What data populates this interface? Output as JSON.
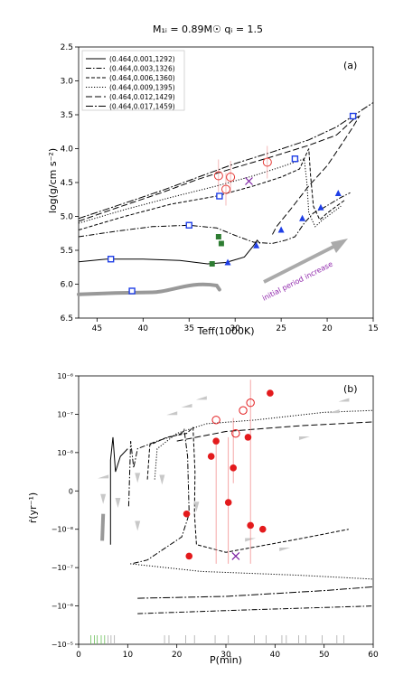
{
  "figure_title": "M₁ᵢ = 0.89M☉ qᵢ = 1.5",
  "chart_data": [
    {
      "type": "line",
      "panel_label": "(a)",
      "xlabel": "Teff(1000K)",
      "ylabel": "log(g/cm s⁻²)",
      "xlim": [
        47,
        15
      ],
      "ylim": [
        6.5,
        2.5
      ],
      "x_reversed": true,
      "y_reversed": true,
      "xticks": [
        "45",
        "40",
        "35",
        "30",
        "25",
        "20",
        "15"
      ],
      "yticks": [
        "2.5",
        "3.0",
        "3.5",
        "4.0",
        "4.5",
        "5.0",
        "5.5",
        "6.0",
        "6.5"
      ],
      "annotation": "initial period increase",
      "legend_position": "upper-left",
      "series": [
        {
          "name": "(0.464,0.001,1292)",
          "style": "solid",
          "points": [
            [
              47,
              5.67
            ],
            [
              44,
              5.63
            ],
            [
              40,
              5.63
            ],
            [
              36,
              5.65
            ],
            [
              33,
              5.7
            ],
            [
              31,
              5.68
            ],
            [
              29,
              5.6
            ],
            [
              28,
              5.43
            ],
            [
              27.6,
              5.35
            ],
            [
              27.3,
              5.4
            ]
          ]
        },
        {
          "name": "(0.464,0.003,1326)",
          "style": "dashdot",
          "points": [
            [
              47,
              5.3
            ],
            [
              43,
              5.22
            ],
            [
              39,
              5.15
            ],
            [
              35,
              5.13
            ],
            [
              32,
              5.17
            ],
            [
              30,
              5.28
            ],
            [
              28,
              5.38
            ],
            [
              26,
              5.4
            ],
            [
              24.5,
              5.35
            ],
            [
              23.5,
              5.3
            ],
            [
              22.5,
              5.1
            ],
            [
              21.5,
              4.95
            ],
            [
              20.5,
              4.88
            ],
            [
              19.5,
              4.8
            ],
            [
              18.5,
              4.72
            ],
            [
              17.5,
              4.65
            ]
          ]
        },
        {
          "name": "(0.464,0.006,1360)",
          "style": "dashed",
          "points": [
            [
              47,
              5.2
            ],
            [
              42,
              5.0
            ],
            [
              37,
              4.82
            ],
            [
              32,
              4.7
            ],
            [
              28,
              4.55
            ],
            [
              25,
              4.42
            ],
            [
              23,
              4.3
            ],
            [
              22,
              4.0
            ],
            [
              21.8,
              4.4
            ],
            [
              21.5,
              4.85
            ],
            [
              20.8,
              5.05
            ],
            [
              20,
              4.95
            ],
            [
              19,
              4.85
            ],
            [
              18,
              4.75
            ]
          ]
        },
        {
          "name": "(0.464,0.009,1395)",
          "style": "dotted",
          "points": [
            [
              47,
              5.1
            ],
            [
              42,
              4.9
            ],
            [
              37,
              4.72
            ],
            [
              32,
              4.55
            ],
            [
              28,
              4.4
            ],
            [
              25,
              4.27
            ],
            [
              22.5,
              4.15
            ],
            [
              22.2,
              4.5
            ],
            [
              22,
              4.95
            ],
            [
              21.3,
              5.15
            ],
            [
              20.5,
              5.05
            ],
            [
              19.5,
              4.95
            ],
            [
              18.5,
              4.85
            ]
          ]
        },
        {
          "name": "(0.464,0.012,1429)",
          "style": "loosedash",
          "points": [
            [
              47,
              5.07
            ],
            [
              43,
              4.88
            ],
            [
              38,
              4.65
            ],
            [
              34,
              4.45
            ],
            [
              30,
              4.28
            ],
            [
              26,
              4.12
            ],
            [
              22,
              3.95
            ],
            [
              19,
              3.8
            ],
            [
              17,
              3.55
            ],
            [
              16.5,
              3.52
            ],
            [
              17.3,
              3.7
            ],
            [
              18.5,
              3.95
            ],
            [
              20,
              4.25
            ],
            [
              22,
              4.55
            ],
            [
              24,
              4.9
            ],
            [
              25.5,
              5.15
            ],
            [
              26,
              5.28
            ]
          ]
        },
        {
          "name": "(0.464,0.017,1459)",
          "style": "densedashdot",
          "points": [
            [
              47,
              5.03
            ],
            [
              43,
              4.85
            ],
            [
              38,
              4.62
            ],
            [
              34,
              4.42
            ],
            [
              30,
              4.22
            ],
            [
              26,
              4.05
            ],
            [
              22,
              3.87
            ],
            [
              19,
              3.68
            ],
            [
              17,
              3.5
            ],
            [
              15,
              3.32
            ]
          ]
        }
      ],
      "observations": {
        "open_circles": [
          [
            31.8,
            4.4
          ],
          [
            31.0,
            4.6
          ],
          [
            26.5,
            4.2
          ],
          [
            30.5,
            4.42
          ]
        ],
        "cross": [
          [
            28.5,
            4.48
          ]
        ],
        "blue_squares": [
          [
            43.5,
            5.63
          ],
          [
            41.2,
            6.1
          ],
          [
            35.0,
            5.13
          ],
          [
            31.7,
            4.7
          ],
          [
            23.5,
            4.15
          ],
          [
            17.2,
            3.52
          ]
        ],
        "blue_triangles": [
          [
            30.8,
            5.68
          ],
          [
            27.7,
            5.43
          ],
          [
            25.0,
            5.2
          ],
          [
            22.7,
            5.03
          ],
          [
            20.7,
            4.87
          ],
          [
            18.8,
            4.66
          ]
        ],
        "green_squares": [
          [
            32.5,
            5.7
          ],
          [
            31.8,
            5.3
          ],
          [
            31.5,
            5.4
          ]
        ]
      }
    },
    {
      "type": "line",
      "panel_label": "(b)",
      "xlabel": "P(min)",
      "ylabel": "ṙ(yr⁻¹)",
      "xlim": [
        0,
        60
      ],
      "yscale": "symlog",
      "xticks": [
        "0",
        "10",
        "20",
        "30",
        "40",
        "50",
        "60"
      ],
      "yticks": [
        "10⁻⁶",
        "10⁻⁷",
        "10⁻⁸",
        "0",
        "−10⁻⁸",
        "−10⁻⁷",
        "−10⁻⁶",
        "−10⁻⁵"
      ],
      "observations_detected": [
        [
          22.0,
          -0.6
        ],
        [
          22.5,
          -1.7
        ],
        [
          27.0,
          0.9
        ],
        [
          28.0,
          1.3
        ],
        [
          30.5,
          -0.3
        ],
        [
          31.5,
          0.6
        ],
        [
          34.5,
          1.4
        ],
        [
          35.0,
          -0.9
        ],
        [
          37.5,
          -1.0
        ],
        [
          39.0,
          2.55
        ]
      ],
      "observations_open": [
        [
          28.0,
          1.85
        ],
        [
          32.0,
          1.5
        ],
        [
          33.5,
          2.1
        ],
        [
          35.0,
          2.3
        ]
      ],
      "observation_cross": [
        [
          32.0,
          -1.7
        ]
      ]
    }
  ]
}
